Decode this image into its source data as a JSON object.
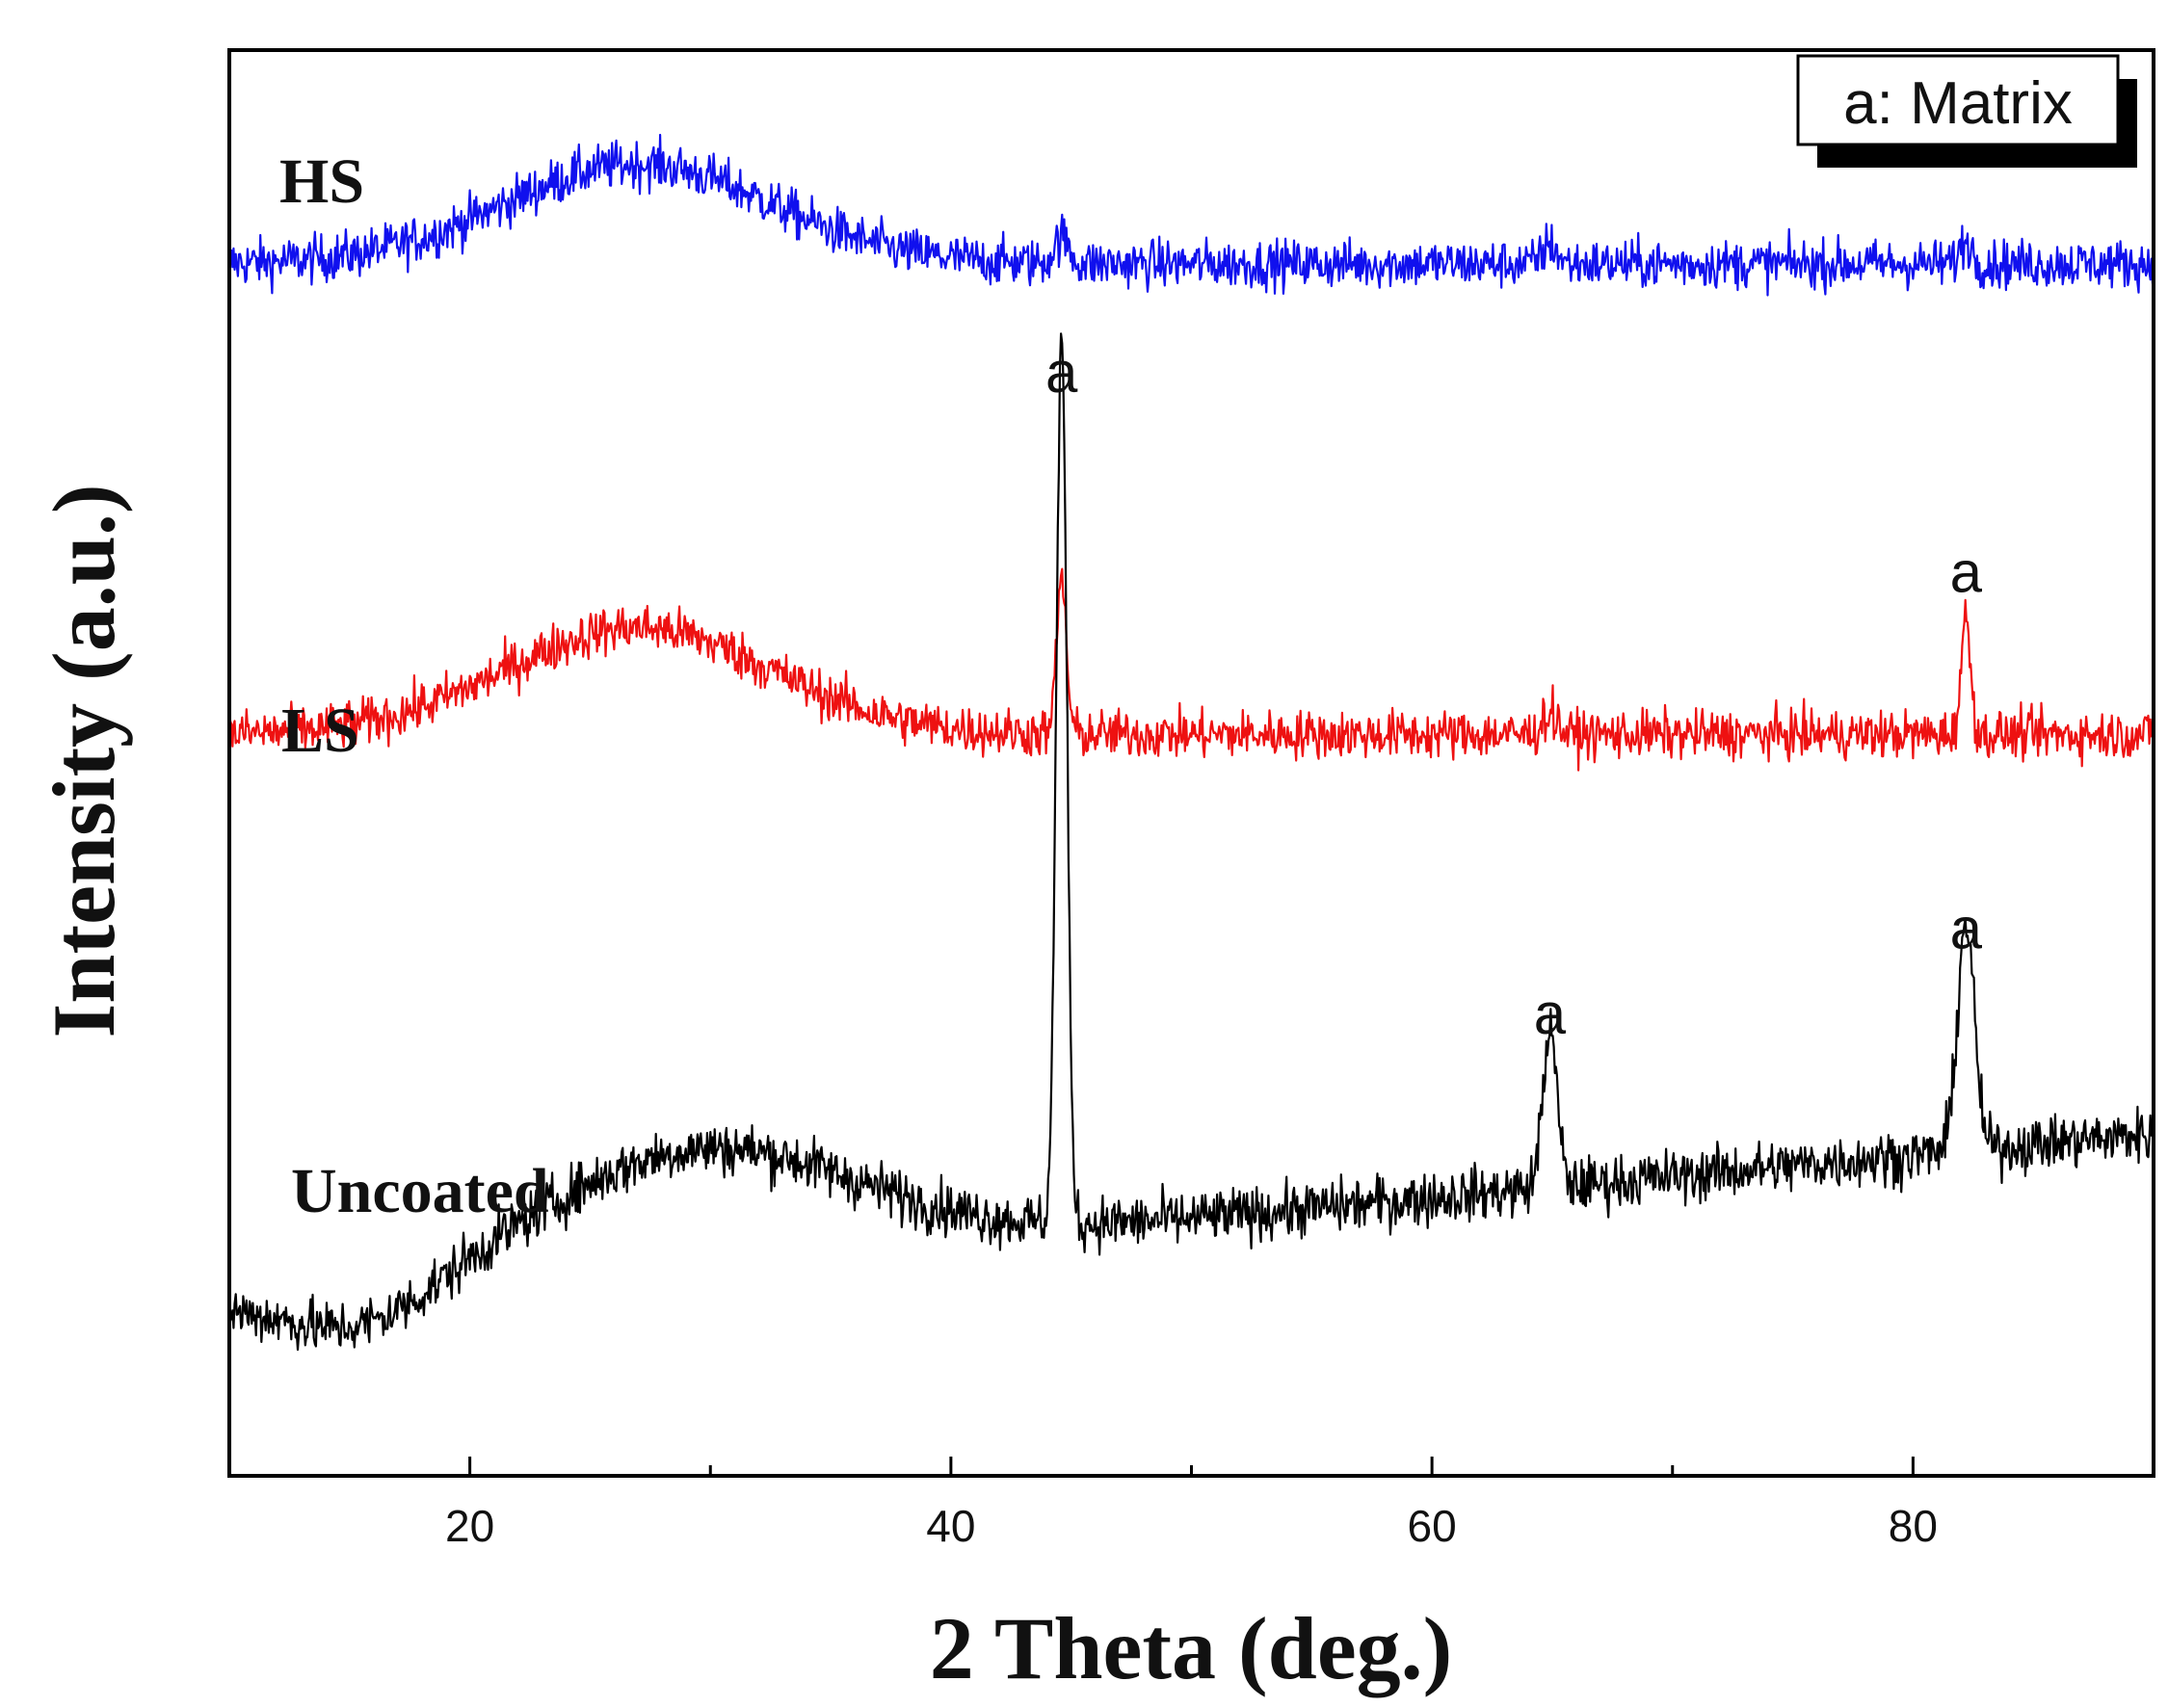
{
  "chart_data": {
    "type": "line",
    "title": "",
    "xlabel": "2 Theta (deg.)",
    "ylabel": "Intensity (a.u.)",
    "xlim": [
      10,
      90
    ],
    "ylim": [
      0,
      100
    ],
    "xticks": [
      20,
      40,
      60,
      80
    ],
    "grid": false,
    "legend": {
      "text": "a: Matrix",
      "position": "top-right"
    },
    "series": [
      {
        "name": "HS",
        "color": "#1010ee",
        "baseline": 85,
        "noise": 1.6,
        "humps": [
          {
            "center": 27,
            "width": 5.5,
            "height": 7
          }
        ],
        "peaks": [
          {
            "x": 44.6,
            "height": 1.8,
            "width": 0.3
          },
          {
            "x": 64.9,
            "height": 1.4,
            "width": 0.3
          },
          {
            "x": 82.2,
            "height": 1.6,
            "width": 0.25
          }
        ]
      },
      {
        "name": "LS",
        "color": "#ee1111",
        "baseline": 52,
        "noise": 1.6,
        "humps": [
          {
            "center": 27,
            "width": 5.5,
            "height": 7.5
          }
        ],
        "peaks": [
          {
            "x": 44.6,
            "height": 11,
            "width": 0.2
          },
          {
            "x": 64.9,
            "height": 1.5,
            "width": 0.3
          },
          {
            "x": 82.2,
            "height": 8,
            "width": 0.2
          }
        ]
      },
      {
        "name": "Uncoated",
        "color": "#000000",
        "baseline_start": 12,
        "baseline_end": 24,
        "noise": 1.8,
        "humps": [
          {
            "center": 29.5,
            "width": 6.5,
            "height": 8
          },
          {
            "center": 15.5,
            "width": 3,
            "height": -3
          }
        ],
        "peaks": [
          {
            "x": 44.6,
            "height": 62,
            "width": 0.22
          },
          {
            "x": 64.9,
            "height": 11,
            "width": 0.3
          },
          {
            "x": 82.2,
            "height": 16,
            "width": 0.35
          }
        ]
      }
    ],
    "annotations": [
      {
        "text": "a",
        "x": 44.6,
        "y": 76
      },
      {
        "text": "a",
        "x": 82.2,
        "y": 62
      },
      {
        "text": "a",
        "x": 64.9,
        "y": 31
      },
      {
        "text": "a",
        "x": 82.2,
        "y": 37
      }
    ]
  }
}
